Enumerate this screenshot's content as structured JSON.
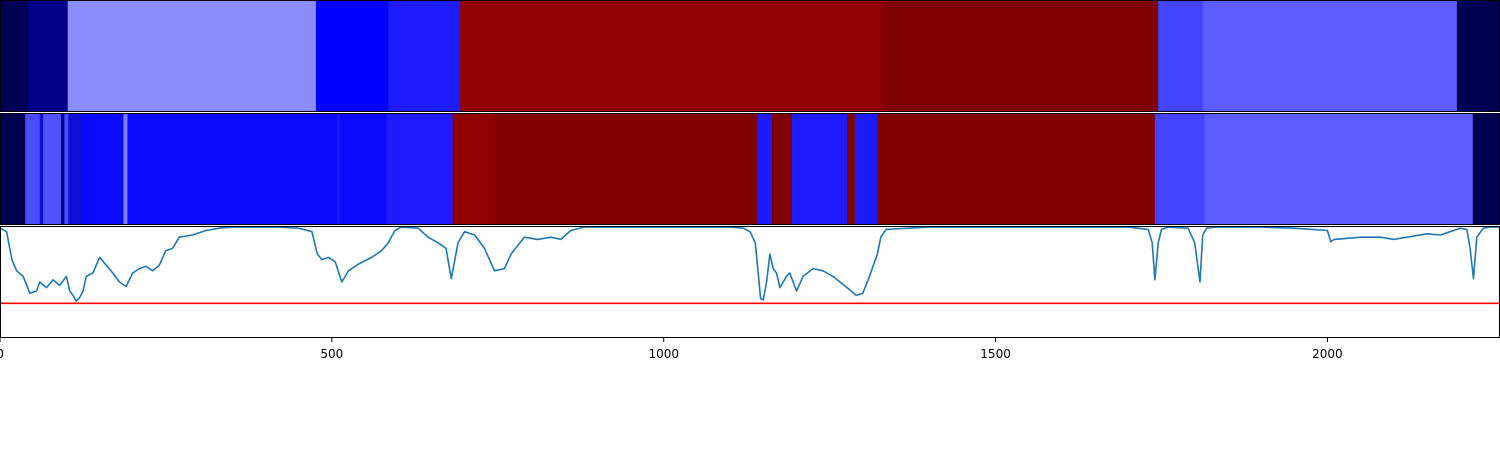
{
  "chart_data": [
    {
      "type": "heatmap",
      "panel": "top-band",
      "xlim": [
        0,
        2260
      ],
      "segments": [
        {
          "x0": 0,
          "x1": 42,
          "color": "#000055"
        },
        {
          "x0": 42,
          "x1": 102,
          "color": "#00008b"
        },
        {
          "x0": 102,
          "x1": 476,
          "color": "#8c8cff"
        },
        {
          "x0": 476,
          "x1": 585,
          "color": "#0000ff"
        },
        {
          "x0": 585,
          "x1": 693,
          "color": "#1c1cff"
        },
        {
          "x0": 693,
          "x1": 1328,
          "color": "#900000"
        },
        {
          "x0": 1328,
          "x1": 1745,
          "color": "#800000"
        },
        {
          "x0": 1745,
          "x1": 1812,
          "color": "#4444ff"
        },
        {
          "x0": 1812,
          "x1": 2195,
          "color": "#5c5cff"
        },
        {
          "x0": 2195,
          "x1": 2260,
          "color": "#000050"
        }
      ]
    },
    {
      "type": "heatmap",
      "panel": "middle-band",
      "xlim": [
        0,
        2260
      ],
      "segments": [
        {
          "x0": 0,
          "x1": 38,
          "color": "#000050"
        },
        {
          "x0": 38,
          "x1": 60,
          "color": "#4a4aff"
        },
        {
          "x0": 60,
          "x1": 65,
          "color": "#1010d0"
        },
        {
          "x0": 65,
          "x1": 92,
          "color": "#5252ff"
        },
        {
          "x0": 92,
          "x1": 97,
          "color": "#000090"
        },
        {
          "x0": 97,
          "x1": 103,
          "color": "#4a4aff"
        },
        {
          "x0": 103,
          "x1": 122,
          "color": "#1010d0"
        },
        {
          "x0": 122,
          "x1": 186,
          "color": "#0a0aff"
        },
        {
          "x0": 186,
          "x1": 192,
          "color": "#8080ff"
        },
        {
          "x0": 192,
          "x1": 508,
          "color": "#0a0aff"
        },
        {
          "x0": 508,
          "x1": 512,
          "color": "#1a1ae0"
        },
        {
          "x0": 512,
          "x1": 582,
          "color": "#0a0aff"
        },
        {
          "x0": 582,
          "x1": 682,
          "color": "#1c1cff"
        },
        {
          "x0": 682,
          "x1": 745,
          "color": "#900000"
        },
        {
          "x0": 745,
          "x1": 1141,
          "color": "#800000"
        },
        {
          "x0": 1141,
          "x1": 1163,
          "color": "#1c1cff"
        },
        {
          "x0": 1163,
          "x1": 1193,
          "color": "#800000"
        },
        {
          "x0": 1193,
          "x1": 1276,
          "color": "#1c1cff"
        },
        {
          "x0": 1276,
          "x1": 1288,
          "color": "#800000"
        },
        {
          "x0": 1288,
          "x1": 1322,
          "color": "#1c1cff"
        },
        {
          "x0": 1322,
          "x1": 1740,
          "color": "#800000"
        },
        {
          "x0": 1740,
          "x1": 1815,
          "color": "#4444ff"
        },
        {
          "x0": 1815,
          "x1": 2219,
          "color": "#5c5cff"
        },
        {
          "x0": 2219,
          "x1": 2260,
          "color": "#000050"
        }
      ]
    },
    {
      "type": "line",
      "panel": "bottom-line",
      "xlim": [
        0,
        2260
      ],
      "ylim": [
        0,
        1
      ],
      "grid": false,
      "x_ticks": [
        "0",
        "500",
        "1000",
        "1500",
        "2000"
      ],
      "x_tick_values": [
        0,
        500,
        1000,
        1500,
        2000
      ],
      "line_color": "#1f77b4",
      "threshold": {
        "value": 0.31,
        "color": "#ff0000"
      },
      "series": [
        {
          "x": [
            0,
            10,
            18,
            25,
            35,
            45,
            55,
            60,
            70,
            80,
            90,
            100,
            105,
            110,
            115,
            120,
            125,
            130,
            140,
            150,
            160,
            170,
            180,
            190,
            200,
            210,
            220,
            230,
            240,
            250,
            260,
            270,
            290,
            310,
            330,
            350,
            380,
            420,
            450,
            470,
            478,
            485,
            495,
            505,
            515,
            525,
            540,
            560,
            575,
            585,
            595,
            605,
            630,
            645,
            660,
            672,
            680,
            690,
            700,
            715,
            730,
            745,
            760,
            770,
            790,
            810,
            830,
            845,
            860,
            880,
            900,
            950,
            1000,
            1050,
            1100,
            1120,
            1130,
            1138,
            1142,
            1146,
            1150,
            1155,
            1160,
            1165,
            1170,
            1175,
            1185,
            1190,
            1200,
            1210,
            1225,
            1240,
            1255,
            1270,
            1280,
            1290,
            1300,
            1310,
            1322,
            1327,
            1335,
            1400,
            1500,
            1600,
            1700,
            1730,
            1736,
            1740,
            1745,
            1750,
            1760,
            1790,
            1800,
            1808,
            1812,
            1818,
            1830,
            1900,
            1950,
            2000,
            2005,
            2010,
            2050,
            2080,
            2100,
            2130,
            2150,
            2170,
            2200,
            2210,
            2215,
            2220,
            2225,
            2235,
            2245,
            2260
          ],
          "y": [
            0.98,
            0.95,
            0.7,
            0.6,
            0.55,
            0.4,
            0.42,
            0.5,
            0.45,
            0.52,
            0.47,
            0.55,
            0.42,
            0.38,
            0.33,
            0.36,
            0.42,
            0.55,
            0.58,
            0.72,
            0.65,
            0.58,
            0.5,
            0.46,
            0.58,
            0.62,
            0.64,
            0.6,
            0.65,
            0.78,
            0.8,
            0.9,
            0.92,
            0.96,
            0.98,
            0.99,
            0.99,
            0.99,
            0.98,
            0.95,
            0.75,
            0.7,
            0.72,
            0.68,
            0.5,
            0.6,
            0.66,
            0.72,
            0.78,
            0.85,
            0.96,
            0.99,
            0.98,
            0.9,
            0.85,
            0.8,
            0.53,
            0.85,
            0.95,
            0.92,
            0.8,
            0.6,
            0.62,
            0.75,
            0.9,
            0.88,
            0.9,
            0.88,
            0.96,
            0.99,
            0.99,
            0.99,
            0.99,
            0.99,
            0.99,
            0.98,
            0.95,
            0.85,
            0.6,
            0.35,
            0.34,
            0.5,
            0.75,
            0.62,
            0.58,
            0.45,
            0.55,
            0.58,
            0.42,
            0.55,
            0.62,
            0.6,
            0.55,
            0.48,
            0.43,
            0.38,
            0.4,
            0.55,
            0.75,
            0.9,
            0.97,
            0.99,
            0.99,
            0.99,
            0.99,
            0.97,
            0.85,
            0.52,
            0.85,
            0.97,
            0.99,
            0.98,
            0.85,
            0.5,
            0.92,
            0.98,
            0.99,
            0.99,
            0.98,
            0.96,
            0.86,
            0.88,
            0.9,
            0.9,
            0.88,
            0.91,
            0.93,
            0.92,
            0.98,
            0.97,
            0.8,
            0.53,
            0.9,
            0.98,
            0.99,
            0.99
          ]
        }
      ]
    }
  ]
}
